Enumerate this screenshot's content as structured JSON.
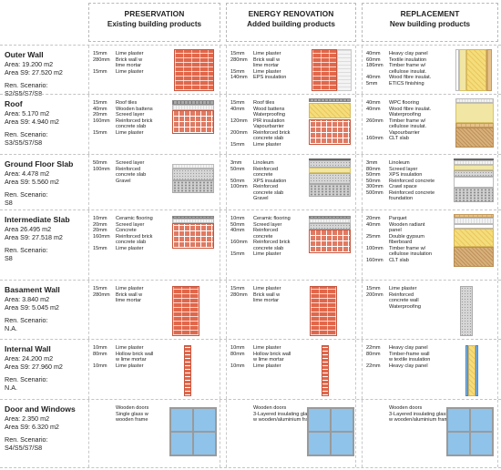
{
  "headers": [
    {
      "line1": "PRESERVATION",
      "line2": "Existing building products"
    },
    {
      "line1": "ENERGY RENOVATION",
      "line2": "Added building products"
    },
    {
      "line1": "REPLACEMENT",
      "line2": "New building products"
    }
  ],
  "rows": [
    {
      "name": "Outer Wall",
      "area": "Area: 19.200 m2",
      "area_s9": "Area S9: 27.520 m2",
      "scenario_label": "Ren. Scenario:",
      "scenario": "S2/S5/S7/S8",
      "preservation": [
        {
          "t": "15mm",
          "m": "Lime plaster"
        },
        {
          "t": "280mm",
          "m": "Brick wall w"
        },
        {
          "t": "",
          "m": "lime mortar"
        },
        {
          "t": "15mm",
          "m": "Lime plaster"
        }
      ],
      "renovation": [
        {
          "t": "15mm",
          "m": "Lime plaster"
        },
        {
          "t": "280mm",
          "m": "Brick wall w"
        },
        {
          "t": "",
          "m": "lime mortar"
        },
        {
          "t": "15mm",
          "m": "Lime plaster"
        },
        {
          "t": "140mm",
          "m": "EPS insulation"
        }
      ],
      "replacement": [
        {
          "t": "40mm",
          "m": "Heavy clay panel"
        },
        {
          "t": "60mm",
          "m": "Textile insulation"
        },
        {
          "t": "186mm",
          "m": "Timber frame w/"
        },
        {
          "t": "",
          "m": "cellulose insulat."
        },
        {
          "t": "40mm",
          "m": "Wood fibre insulat."
        },
        {
          "t": "5mm",
          "m": "ETICS finishing"
        }
      ]
    },
    {
      "name": "Roof",
      "area": "Area: 5.170 m2",
      "area_s9": "Area S9: 4.940 m2",
      "scenario_label": "Ren. Scenario:",
      "scenario": "S3/S5/S7/S8",
      "preservation": [
        {
          "t": "15mm",
          "m": "Roof tiles"
        },
        {
          "t": "40mm",
          "m": "Wooden battens"
        },
        {
          "t": "20mm",
          "m": "Screed layer"
        },
        {
          "t": "160mm",
          "m": "Reinforced brick"
        },
        {
          "t": "",
          "m": "concrete slab"
        },
        {
          "t": "15mm",
          "m": "Lime plaster"
        }
      ],
      "renovation": [
        {
          "t": "15mm",
          "m": "Roof tiles"
        },
        {
          "t": "40mm",
          "m": "Wood battens"
        },
        {
          "t": "",
          "m": "Waterproofing"
        },
        {
          "t": "120mm",
          "m": "PIR insulation"
        },
        {
          "t": "",
          "m": "Vapourbarrier"
        },
        {
          "t": "200mm",
          "m": "Reinforced brick"
        },
        {
          "t": "",
          "m": "concrete slab"
        },
        {
          "t": "15mm",
          "m": "Lime plaster"
        }
      ],
      "replacement": [
        {
          "t": "40mm",
          "m": "WPC flooring"
        },
        {
          "t": "40mm",
          "m": "Wood fibre insulat."
        },
        {
          "t": "",
          "m": "Waterproofing"
        },
        {
          "t": "260mm",
          "m": "Timber frame w/"
        },
        {
          "t": "",
          "m": "cellulose insulat."
        },
        {
          "t": "",
          "m": "Vapourbarrier"
        },
        {
          "t": "160mm",
          "m": "CLT slab"
        }
      ]
    },
    {
      "name": "Ground Floor Slab",
      "area": "Area: 4.478 m2",
      "area_s9": "Area S9: 5.560 m2",
      "scenario_label": "Ren. Scenario:",
      "scenario": "S8",
      "preservation": [
        {
          "t": "50mm",
          "m": "Screed layer"
        },
        {
          "t": "100mm",
          "m": "Reinforced"
        },
        {
          "t": "",
          "m": "concrete slab"
        },
        {
          "t": "",
          "m": "Gravel"
        }
      ],
      "renovation": [
        {
          "t": "3mm",
          "m": "Linoleum"
        },
        {
          "t": "50mm",
          "m": "Reinforced"
        },
        {
          "t": "",
          "m": "concrete"
        },
        {
          "t": "50mm",
          "m": "XPS insulation"
        },
        {
          "t": "100mm",
          "m": "Reinforced"
        },
        {
          "t": "",
          "m": "concrete slab"
        },
        {
          "t": "",
          "m": "Gravel"
        }
      ],
      "replacement": [
        {
          "t": "3mm",
          "m": "Linoleum"
        },
        {
          "t": "80mm",
          "m": "Screed layer"
        },
        {
          "t": "50mm",
          "m": "XPS insulation"
        },
        {
          "t": "50mm",
          "m": "Reinforced concrete"
        },
        {
          "t": "300mm",
          "m": "Crawl space"
        },
        {
          "t": "500mm",
          "m": "Reinforced concrete"
        },
        {
          "t": "",
          "m": "foundation"
        }
      ]
    },
    {
      "name": "Intermediate Slab",
      "area": "Area 26.495 m2",
      "area_s9": "Area S9: 27.518 m2",
      "scenario_label": "Ren. Scenario:",
      "scenario": "S8",
      "preservation": [
        {
          "t": "10mm",
          "m": "Ceramic flooring"
        },
        {
          "t": "20mm",
          "m": "Screed layer"
        },
        {
          "t": "20mm",
          "m": "Concrete"
        },
        {
          "t": "160mm",
          "m": "Reinforced brick"
        },
        {
          "t": "",
          "m": "concrete slab"
        },
        {
          "t": "15mm",
          "m": "Lime plaster"
        }
      ],
      "renovation": [
        {
          "t": "10mm",
          "m": "Ceramic flooring"
        },
        {
          "t": "50mm",
          "m": "Screed layer"
        },
        {
          "t": "40mm",
          "m": "Reinforced"
        },
        {
          "t": "",
          "m": "concrete"
        },
        {
          "t": "160mm",
          "m": "Reinforced brick"
        },
        {
          "t": "",
          "m": "concrete slab"
        },
        {
          "t": "15mm",
          "m": "Lime plaster"
        }
      ],
      "replacement": [
        {
          "t": "20mm",
          "m": "Parquet"
        },
        {
          "t": "40mm",
          "m": "Wooden radiant"
        },
        {
          "t": "",
          "m": "panel"
        },
        {
          "t": "25mm",
          "m": "Double gypsum"
        },
        {
          "t": "",
          "m": "fiberboard"
        },
        {
          "t": "100mm",
          "m": "Timber frame w/"
        },
        {
          "t": "",
          "m": "cellulose insulation"
        },
        {
          "t": "160mm",
          "m": "CLT slab"
        }
      ]
    },
    {
      "name": "Basament Wall",
      "area": "Area: 3.840 m2",
      "area_s9": "Area S9: 5.045 m2",
      "scenario_label": "Ren. Scenario:",
      "scenario": "N.A.",
      "preservation": [
        {
          "t": "15mm",
          "m": "Lime plaster"
        },
        {
          "t": "280mm",
          "m": "Brick wall w"
        },
        {
          "t": "",
          "m": "lime mortar"
        }
      ],
      "renovation": [
        {
          "t": "15mm",
          "m": "Lime plaster"
        },
        {
          "t": "280mm",
          "m": "Brick wall w"
        },
        {
          "t": "",
          "m": "lime mortar"
        }
      ],
      "replacement": [
        {
          "t": "15mm",
          "m": "Lime plaster"
        },
        {
          "t": "200mm",
          "m": "Reinforced"
        },
        {
          "t": "",
          "m": "concrete wall"
        },
        {
          "t": "",
          "m": "Waterproofing"
        }
      ]
    },
    {
      "name": "Internal Wall",
      "area": "Area: 24.200 m2",
      "area_s9": "Area S9: 27.960 m2",
      "scenario_label": "Ren. Scenario:",
      "scenario": "N.A.",
      "preservation": [
        {
          "t": "10mm",
          "m": "Lime plaster"
        },
        {
          "t": "80mm",
          "m": "Hollow brick wall"
        },
        {
          "t": "",
          "m": "w lime mortar"
        },
        {
          "t": "10mm",
          "m": "Lime plaster"
        }
      ],
      "renovation": [
        {
          "t": "10mm",
          "m": "Lime plaster"
        },
        {
          "t": "80mm",
          "m": "Hollow brick wall"
        },
        {
          "t": "",
          "m": "w lime mortar"
        },
        {
          "t": "10mm",
          "m": "Lime plaster"
        }
      ],
      "replacement": [
        {
          "t": "22mm",
          "m": "Heavy clay panel"
        },
        {
          "t": "80mm",
          "m": "Timber-frame wall"
        },
        {
          "t": "",
          "m": "w textile insulation"
        },
        {
          "t": "22mm",
          "m": "Heavy clay panel"
        }
      ]
    },
    {
      "name": "Door and Windows",
      "area": "Area: 2.350 m2",
      "area_s9": "Area S9: 6.320 m2",
      "scenario_label": "Ren. Scenario:",
      "scenario": "S4/S5/S7/S8",
      "preservation": [
        {
          "t": "",
          "m": "Wooden doors"
        },
        {
          "t": "",
          "m": "Single glass w"
        },
        {
          "t": "",
          "m": "wooden frame"
        }
      ],
      "renovation": [
        {
          "t": "",
          "m": "Wooden doors"
        },
        {
          "t": "",
          "m": "3-Layered insulating glass"
        },
        {
          "t": "",
          "m": "w wooden/aluminium frame"
        }
      ],
      "replacement": [
        {
          "t": "",
          "m": "Wooden doors"
        },
        {
          "t": "",
          "m": "3-Layered insulating glass"
        },
        {
          "t": "",
          "m": "w wooden/aluminium frame"
        }
      ]
    }
  ]
}
